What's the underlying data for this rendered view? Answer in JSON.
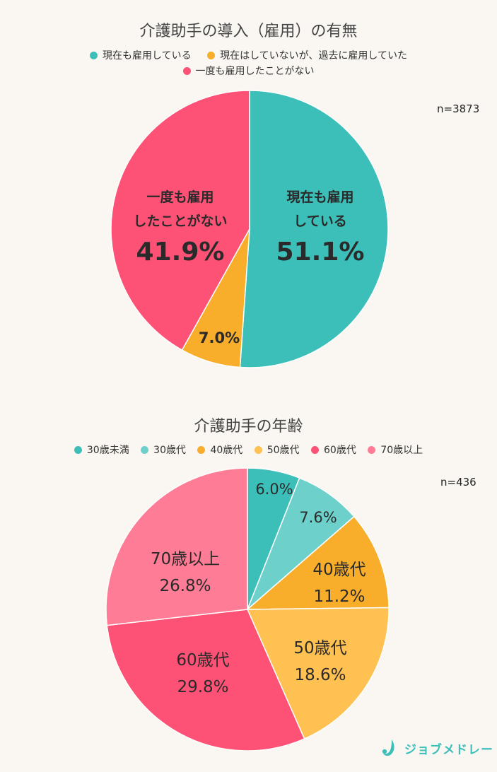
{
  "chart_data": [
    {
      "type": "pie",
      "title": "介護助手の導入（雇用）の有無",
      "n_label": "n=3873",
      "legend_position": "top",
      "categories": [
        "現在も雇用している",
        "現在はしていないが、過去に雇用していた",
        "一度も雇用したことがない"
      ],
      "values": [
        51.1,
        7.0,
        41.9
      ],
      "colors": [
        "#3cbfb8",
        "#f8ae2a",
        "#fd5275"
      ],
      "slice_labels": [
        {
          "line1": "現在も雇用",
          "line2": "している",
          "pct": "51.1%"
        },
        {
          "line1": "",
          "line2": "",
          "pct": "7.0%"
        },
        {
          "line1": "一度も雇用",
          "line2": "したことがない",
          "pct": "41.9%"
        }
      ]
    },
    {
      "type": "pie",
      "title": "介護助手の年齢",
      "n_label": "n=436",
      "legend_position": "top",
      "categories": [
        "30歳未満",
        "30歳代",
        "40歳代",
        "50歳代",
        "60歳代",
        "70歳以上"
      ],
      "values": [
        6.0,
        7.6,
        11.2,
        18.6,
        29.8,
        26.8
      ],
      "colors": [
        "#3cbfb8",
        "#6dd0ca",
        "#f8ae2a",
        "#fec152",
        "#fd5275",
        "#fe7c95"
      ],
      "slice_labels": [
        {
          "name": "",
          "pct": "6.0%"
        },
        {
          "name": "",
          "pct": "7.6%"
        },
        {
          "name": "40歳代",
          "pct": "11.2%"
        },
        {
          "name": "50歳代",
          "pct": "18.6%"
        },
        {
          "name": "60歳代",
          "pct": "29.8%"
        },
        {
          "name": "70歳以上",
          "pct": "26.8%"
        }
      ]
    }
  ],
  "logo": {
    "text": "ジョブメドレー",
    "icon": "jobmedley-logo-icon",
    "color": "#3cbfb8"
  }
}
